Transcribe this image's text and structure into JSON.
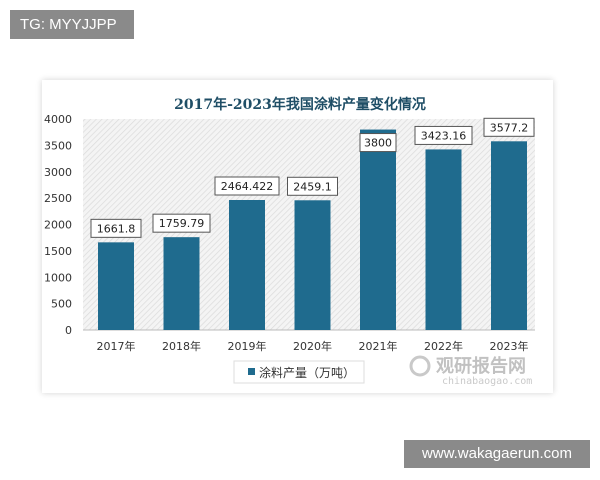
{
  "overlay_top_left": "TG: MYYJJPP",
  "overlay_bottom_right": "www.wakagaerun.com",
  "watermark": {
    "cn": "观研报告网",
    "url": "chinabaogao.com"
  },
  "chart_data": {
    "type": "bar",
    "title": "2017年-2023年我国涂料产量变化情况",
    "categories": [
      "2017年",
      "2018年",
      "2019年",
      "2020年",
      "2021年",
      "2022年",
      "2023年"
    ],
    "series": [
      {
        "name": "涂料产量（万吨）",
        "values": [
          1661.8,
          1759.79,
          2464.422,
          2459.1,
          3800,
          3423.16,
          3577.2
        ]
      }
    ],
    "data_labels": [
      "1661.8",
      "1759.79",
      "2464.422",
      "2459.1",
      "3800",
      "3423.16",
      "3577.2"
    ],
    "yticks": [
      "0",
      "500",
      "1000",
      "1500",
      "2000",
      "2500",
      "3000",
      "3500",
      "4000"
    ],
    "ylim": [
      0,
      4000
    ],
    "grid": false,
    "legend_position": "bottom",
    "colors": {
      "bar": "#1f6b8e",
      "title": "#1f4e66"
    }
  }
}
